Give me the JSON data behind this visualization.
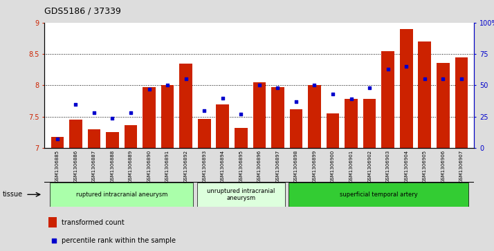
{
  "title": "GDS5186 / 37339",
  "samples": [
    "GSM1306885",
    "GSM1306886",
    "GSM1306887",
    "GSM1306888",
    "GSM1306889",
    "GSM1306890",
    "GSM1306891",
    "GSM1306892",
    "GSM1306893",
    "GSM1306894",
    "GSM1306895",
    "GSM1306896",
    "GSM1306897",
    "GSM1306898",
    "GSM1306899",
    "GSM1306900",
    "GSM1306901",
    "GSM1306902",
    "GSM1306903",
    "GSM1306904",
    "GSM1306905",
    "GSM1306906",
    "GSM1306907"
  ],
  "transformed_count": [
    7.18,
    7.45,
    7.3,
    7.25,
    7.37,
    7.97,
    8.0,
    8.35,
    7.47,
    7.7,
    7.32,
    8.05,
    7.97,
    7.62,
    8.0,
    7.55,
    7.78,
    7.78,
    8.55,
    8.9,
    8.7,
    8.36,
    8.45
  ],
  "percentile_rank": [
    7,
    35,
    28,
    24,
    28,
    47,
    50,
    55,
    30,
    40,
    27,
    50,
    48,
    37,
    50,
    43,
    39,
    48,
    63,
    65,
    55,
    55,
    55
  ],
  "bar_color": "#cc2200",
  "dot_color": "#0000cc",
  "ylim_left": [
    7.0,
    9.0
  ],
  "ylim_right": [
    0,
    100
  ],
  "yticks_left": [
    7.0,
    7.5,
    8.0,
    8.5,
    9.0
  ],
  "yticks_right": [
    0,
    25,
    50,
    75,
    100
  ],
  "ytick_labels_right": [
    "0",
    "25",
    "50",
    "75",
    "100%"
  ],
  "hline_values": [
    7.5,
    8.0,
    8.5
  ],
  "groups": [
    {
      "label": "ruptured intracranial aneurysm",
      "start": 0,
      "end": 8,
      "color": "#aaffaa"
    },
    {
      "label": "unruptured intracranial\naneurysm",
      "start": 8,
      "end": 13,
      "color": "#ddffdd"
    },
    {
      "label": "superficial temporal artery",
      "start": 13,
      "end": 23,
      "color": "#33cc33"
    }
  ],
  "tissue_label": "tissue",
  "legend_bar_label": "transformed count",
  "legend_dot_label": "percentile rank within the sample",
  "background_color": "#dddddd",
  "plot_bg_color": "#ffffff",
  "xtick_bg_color": "#cccccc"
}
